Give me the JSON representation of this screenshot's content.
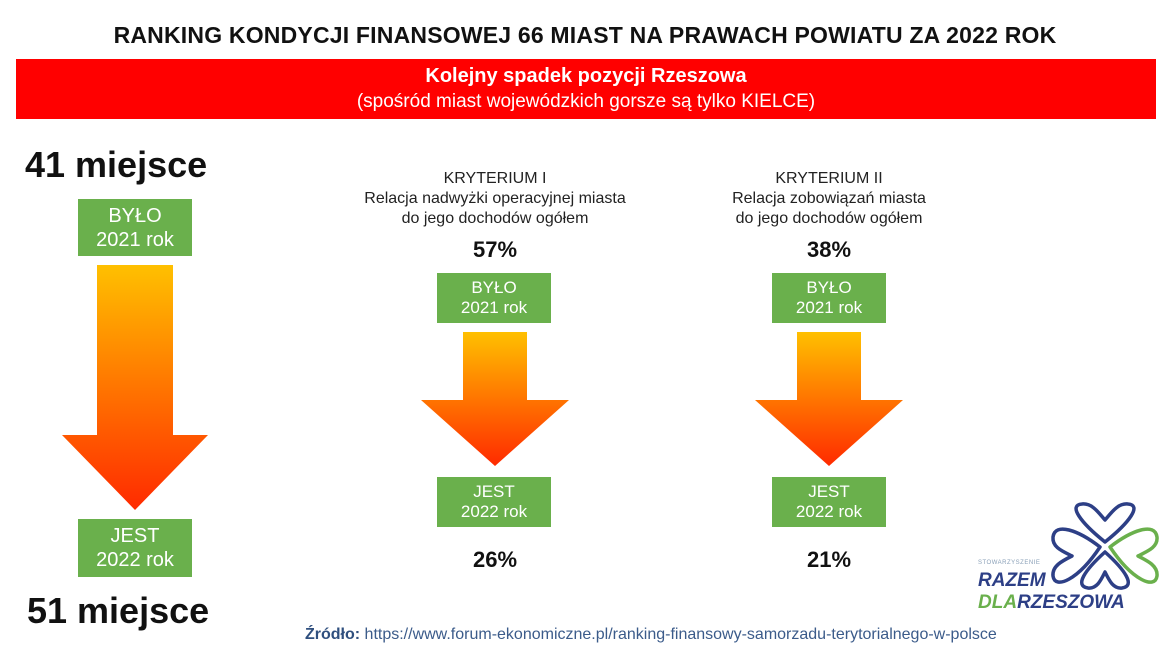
{
  "title": "RANKING KONDYCJI FINANSOWEJ 66 MIAST NA PRAWACH POWIATU ZA 2022 ROK",
  "banner": {
    "line1": "Kolejny spadek pozycji Rzeszowa",
    "line2": "(spośród miast wojewódzkich gorsze są tylko KIELCE)"
  },
  "ranking": {
    "was_place": "41 miejsce",
    "was_label": "BYŁO",
    "was_year": "2021 rok",
    "now_label": "JEST",
    "now_year": "2022 rok",
    "now_place": "51 miejsce"
  },
  "criteria": [
    {
      "heading": "KRYTERIUM I",
      "desc1": "Relacja nadwyżki operacyjnej miasta",
      "desc2": "do jego dochodów ogółem",
      "was_value": "57%",
      "was_label": "BYŁO",
      "was_year": "2021 rok",
      "now_label": "JEST",
      "now_year": "2022 rok",
      "now_value": "26%"
    },
    {
      "heading": "KRYTERIUM II",
      "desc1": "Relacja zobowiązań miasta",
      "desc2": "do jego dochodów ogółem",
      "was_value": "38%",
      "was_label": "BYŁO",
      "was_year": "2021 rok",
      "now_label": "JEST",
      "now_year": "2022 rok",
      "now_value": "21%"
    }
  ],
  "logo": {
    "small": "STOWARZYSZENIE",
    "line1": "RAZEM",
    "line2a": "DLA",
    "line2b": "RZESZOWA"
  },
  "source": {
    "label": "Źródło:",
    "url": "https://www.forum-ekonomiczne.pl/ranking-finansowy-samorzadu-terytorialnego-w-polsce"
  },
  "colors": {
    "banner": "#ff0000",
    "green": "#6ab04c",
    "arrow_top": "#ffc000",
    "arrow_bottom": "#ff2a00",
    "logo_blue": "#2d3f86"
  }
}
